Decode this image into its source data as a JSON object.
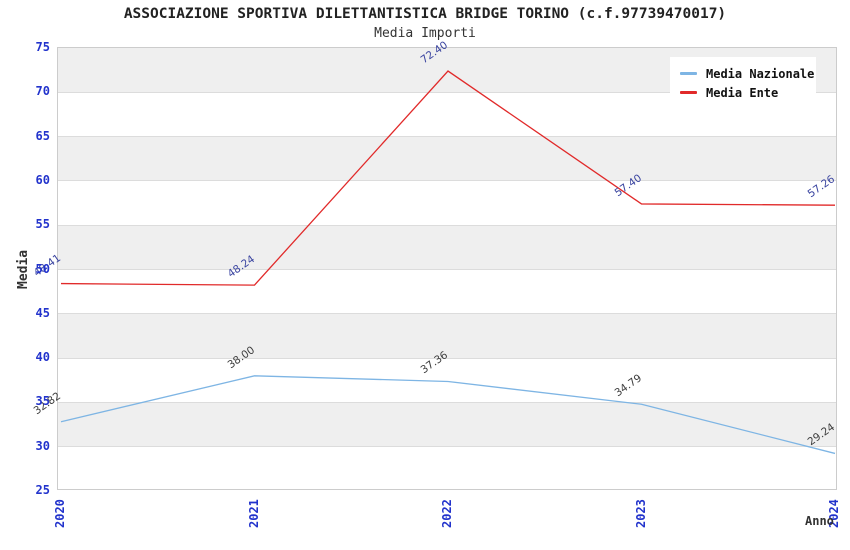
{
  "title": "ASSOCIAZIONE SPORTIVA DILETTANTISTICA BRIDGE TORINO (c.f.97739470017)",
  "subtitle": "Media Importi",
  "chart_data": {
    "type": "line",
    "x": [
      "2020",
      "2021",
      "2022",
      "2023",
      "2024"
    ],
    "series": [
      {
        "name": "Media Nazionale",
        "color": "#7eb5e4",
        "label_color": "#3d3d3d",
        "values": [
          32.82,
          38.0,
          37.36,
          34.79,
          29.24
        ]
      },
      {
        "name": "Media Ente",
        "color": "#e12a2a",
        "label_color": "#3a44a0",
        "values": [
          48.41,
          48.24,
          72.4,
          57.4,
          57.26
        ]
      }
    ],
    "xlabel": "Anno",
    "ylabel": "Media",
    "ylim": [
      25,
      75
    ],
    "yticks": [
      25,
      30,
      35,
      40,
      45,
      50,
      55,
      60,
      65,
      70,
      75
    ],
    "grid": true,
    "band_shading": true,
    "legend_position": "top-right",
    "colors": {
      "tick_label": "#2233cc",
      "band": "#efefef",
      "gridline": "#dcdcdc",
      "frame": "#cccccc",
      "title": "#222222"
    }
  }
}
